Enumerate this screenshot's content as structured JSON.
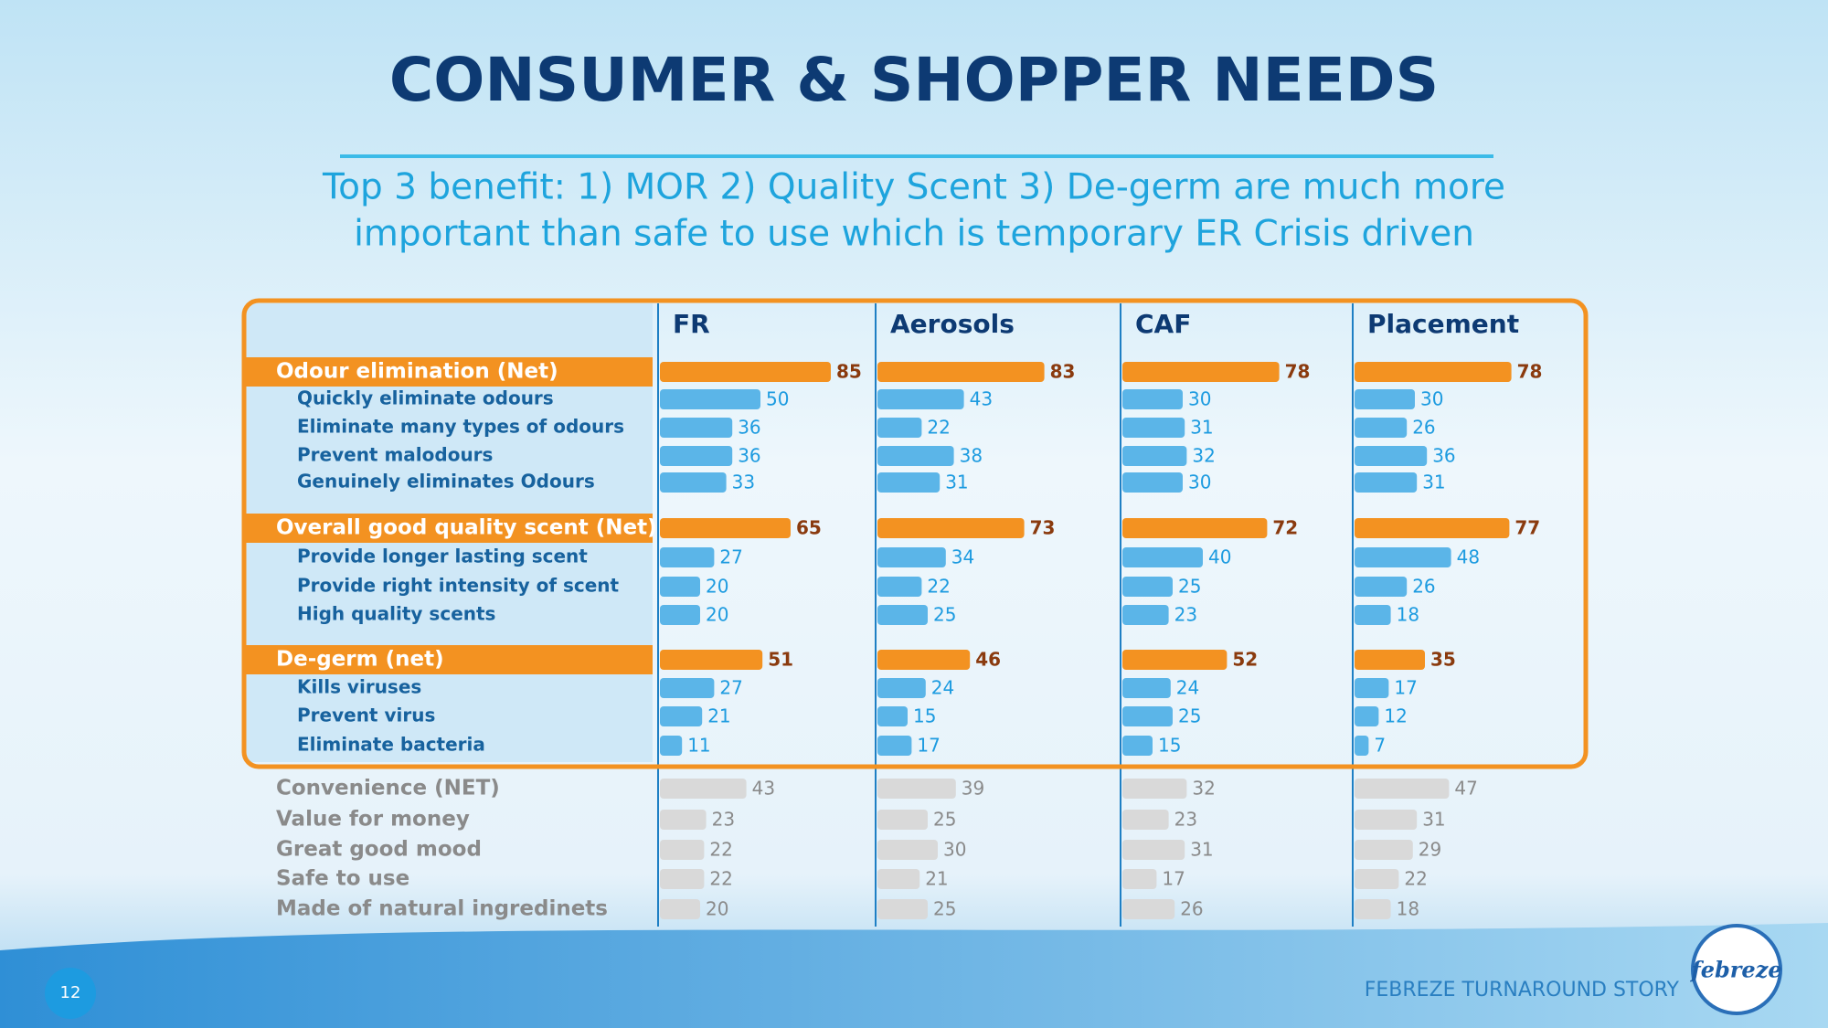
{
  "chart_data": {
    "type": "bar-table",
    "title": "CONSUMER & SHOPPER NEEDS",
    "subtitle": [
      "Top 3 benefit: 1) MOR 2) Quality Scent 3) De-germ are much more",
      "important than safe to use which is temporary ER Crisis driven"
    ],
    "columns": [
      "FR",
      "Aerosols",
      "CAF",
      "Placement"
    ],
    "net_color": "#f39221",
    "item_color": "#5bb5e8",
    "other_color": "#d9d9d9",
    "groups": [
      {
        "name": "Odour elimination (Net)",
        "values": [
          85,
          83,
          78,
          78
        ],
        "items": [
          {
            "name": "Quickly eliminate odours",
            "values": [
              50,
              43,
              30,
              30
            ]
          },
          {
            "name": "Eliminate many types of odours",
            "values": [
              36,
              22,
              31,
              26
            ]
          },
          {
            "name": "Prevent malodours",
            "values": [
              36,
              38,
              32,
              36
            ]
          },
          {
            "name": "Genuinely eliminates Odours",
            "values": [
              33,
              31,
              30,
              31
            ]
          }
        ]
      },
      {
        "name": "Overall good quality scent (Net)",
        "values": [
          65,
          73,
          72,
          77
        ],
        "items": [
          {
            "name": "Provide longer lasting scent",
            "values": [
              27,
              34,
              40,
              48
            ]
          },
          {
            "name": "Provide right intensity of scent",
            "values": [
              20,
              22,
              25,
              26
            ]
          },
          {
            "name": "High quality scents",
            "values": [
              20,
              25,
              23,
              18
            ]
          }
        ]
      },
      {
        "name": "De-germ (net)",
        "values": [
          51,
          46,
          52,
          35
        ],
        "items": [
          {
            "name": "Kills viruses",
            "values": [
              27,
              24,
              24,
              17
            ]
          },
          {
            "name": "Prevent virus",
            "values": [
              21,
              15,
              25,
              12
            ]
          },
          {
            "name": "Eliminate bacteria",
            "values": [
              11,
              17,
              15,
              7
            ]
          }
        ]
      }
    ],
    "others": [
      {
        "name": "Convenience (NET)",
        "values": [
          43,
          39,
          32,
          47
        ]
      },
      {
        "name": "Value for money",
        "values": [
          23,
          25,
          23,
          31
        ]
      },
      {
        "name": "Great good mood",
        "values": [
          22,
          30,
          31,
          29
        ]
      },
      {
        "name": "Safe to use",
        "values": [
          22,
          21,
          17,
          22
        ]
      },
      {
        "name": "Made of natural ingredinets",
        "values": [
          20,
          25,
          26,
          18
        ]
      }
    ]
  },
  "footer": {
    "page": "12",
    "text": "FEBREZE TURNAROUND STORY",
    "logo": "febreze"
  }
}
